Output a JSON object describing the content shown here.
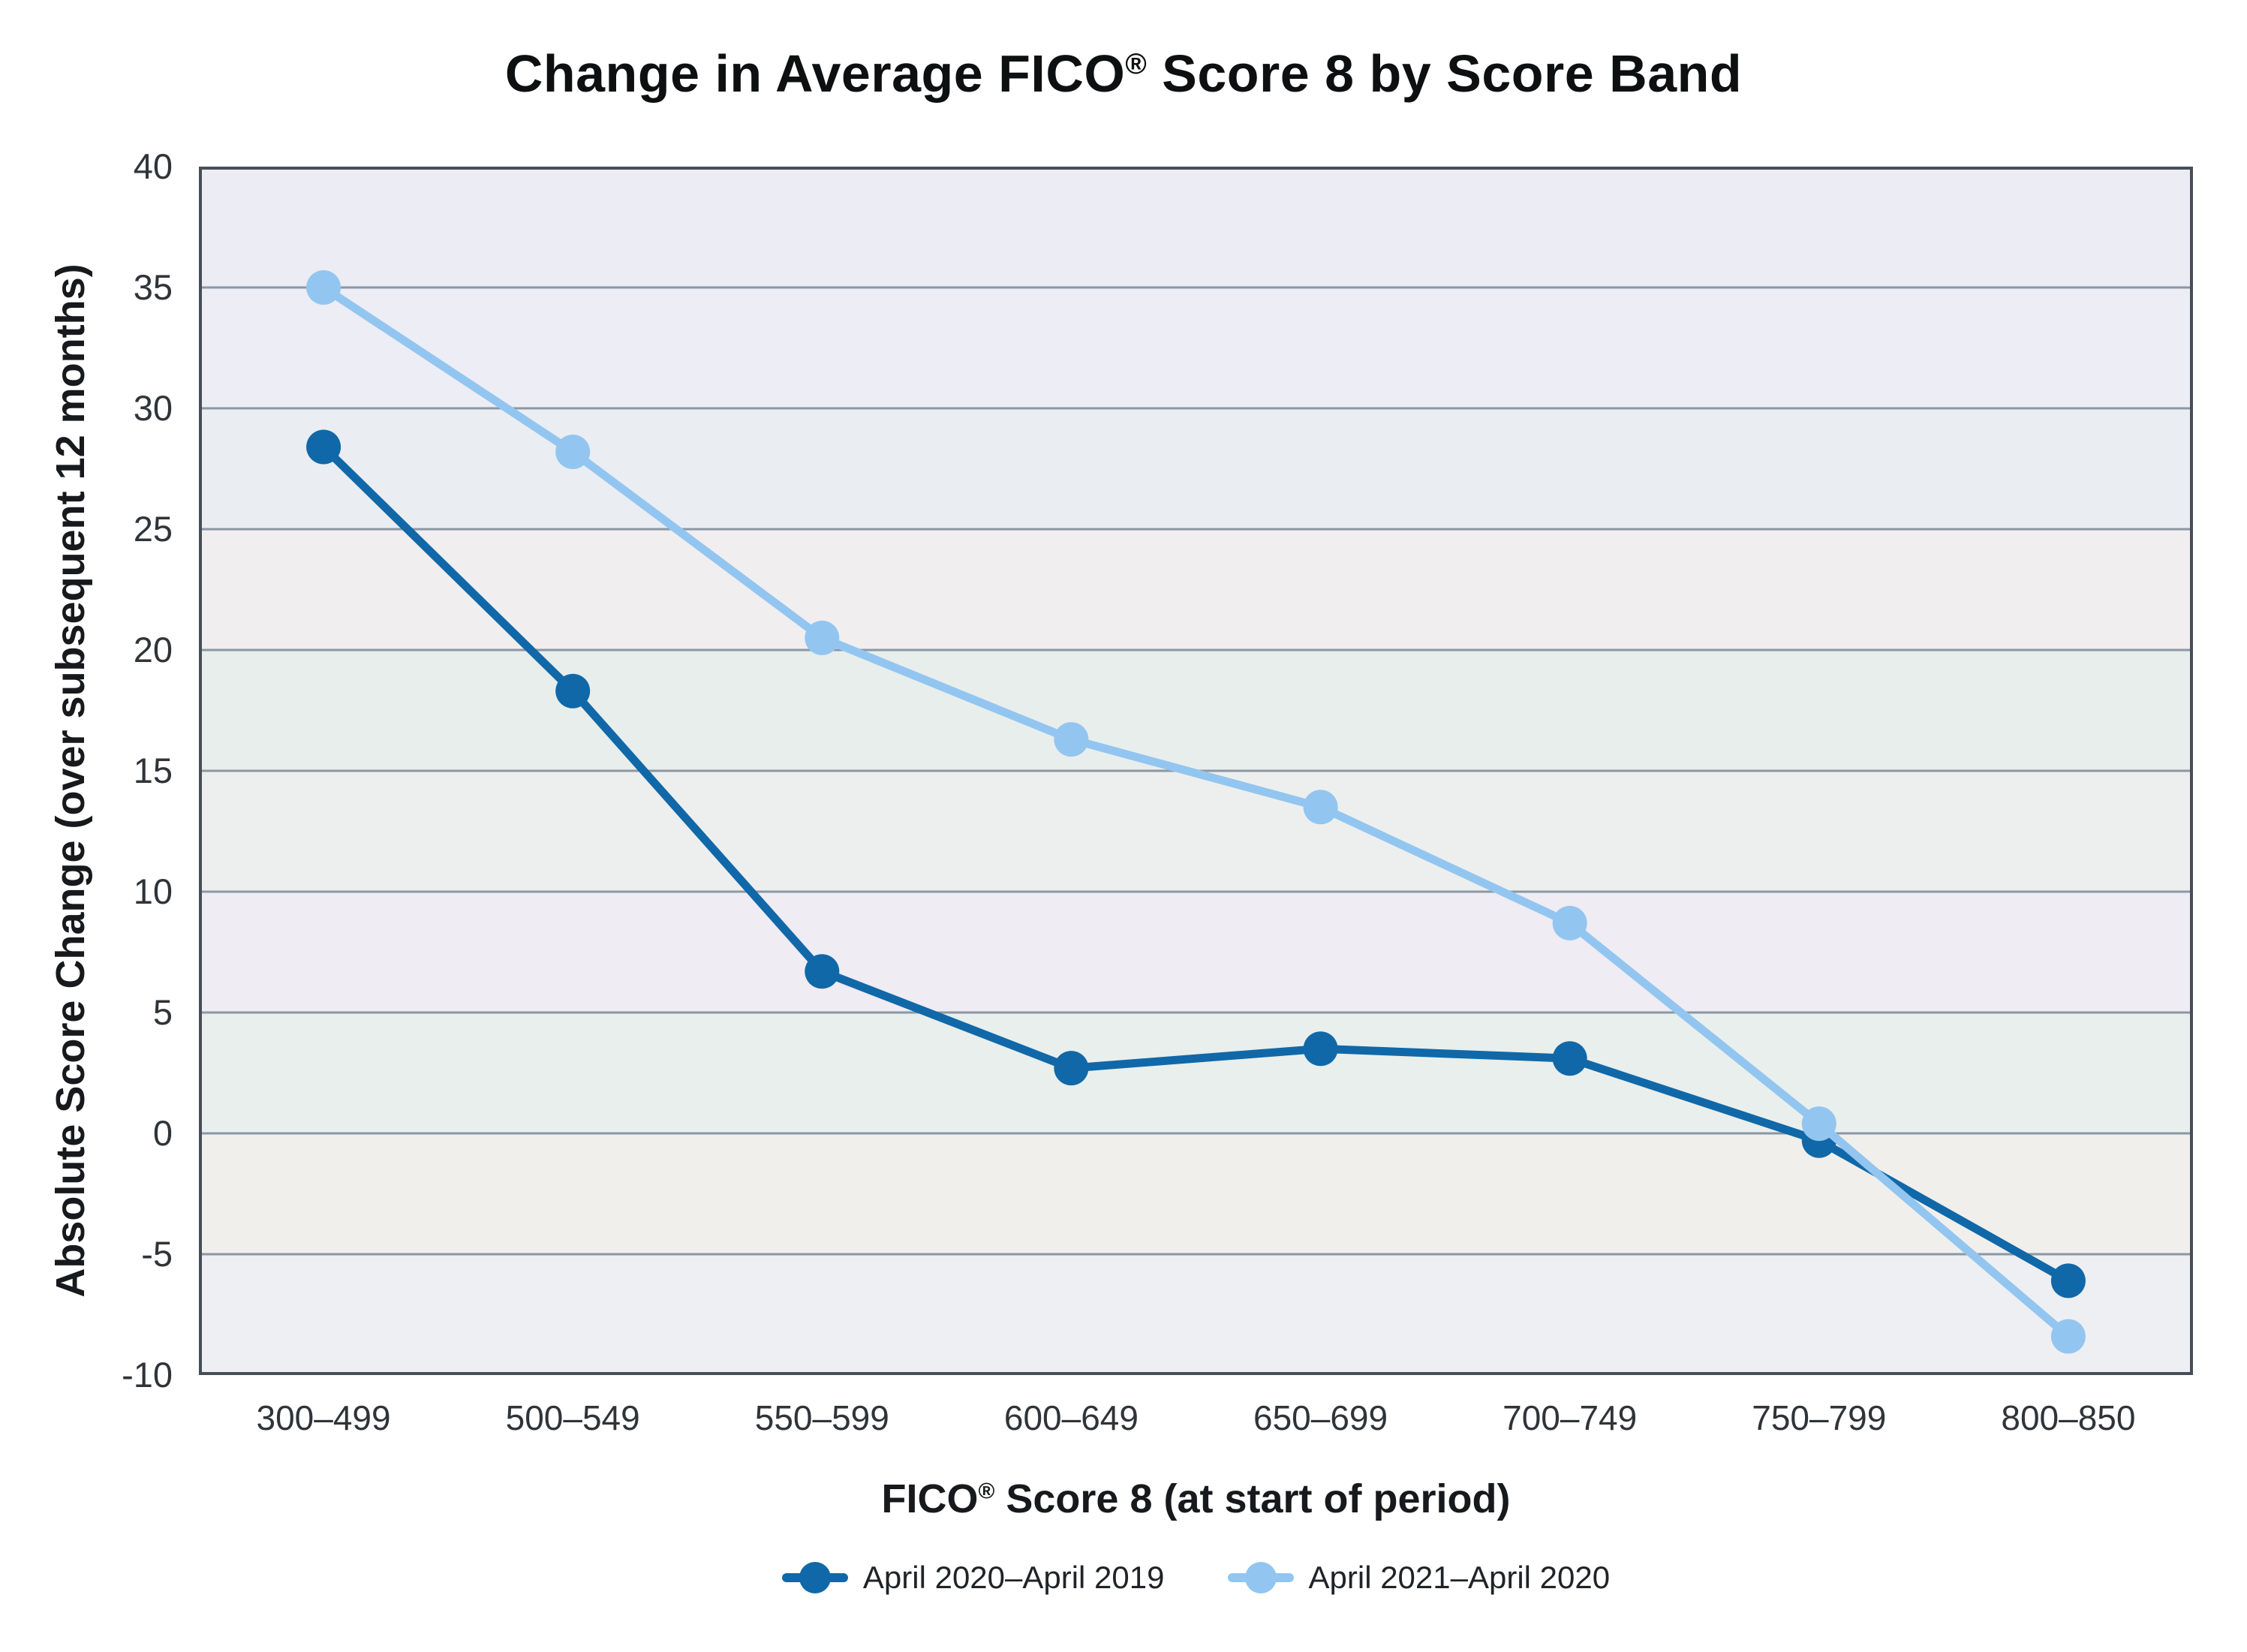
{
  "chart": {
    "title_pre": "Change in Average FICO",
    "title_reg": "®",
    "title_post": " Score 8 by Score Band",
    "y_title": "Absolute Score Change (over subsequent 12 months)",
    "x_title_pre": "FICO",
    "x_title_reg": "®",
    "x_title_post": " Score 8 (at start of period)"
  },
  "chart_data": {
    "type": "line",
    "title": "Change in Average FICO® Score 8 by Score Band",
    "xlabel": "FICO® Score 8 (at start of period)",
    "ylabel": "Absolute Score Change (over subsequent 12 months)",
    "categories": [
      "300–499",
      "500–549",
      "550–599",
      "600–649",
      "650–699",
      "700–749",
      "750–799",
      "800–850"
    ],
    "series": [
      {
        "name": "April 2020–April 2019",
        "color": "#1068a8",
        "values": [
          28.4,
          18.3,
          6.7,
          2.7,
          3.5,
          3.1,
          -0.3,
          -6.1
        ]
      },
      {
        "name": "April 2021–April 2020",
        "color": "#92c6f0",
        "values": [
          35.0,
          28.2,
          20.5,
          16.3,
          13.5,
          8.7,
          0.4,
          -8.4
        ]
      }
    ],
    "ylim": [
      -10,
      40
    ],
    "yticks": [
      40,
      35,
      30,
      25,
      20,
      15,
      10,
      5,
      0,
      -5,
      -10
    ],
    "grid": "horizontal",
    "legend_position": "bottom",
    "gridline_color": "#8b97a4",
    "border_color": "#474e57",
    "band_colors": [
      "#ececf4",
      "#ecedf5",
      "#eaedf2",
      "#f1eef0",
      "#e8eeec",
      "#edefee",
      "#efecf3",
      "#e9efec",
      "#f1efec",
      "#edeff2"
    ]
  }
}
